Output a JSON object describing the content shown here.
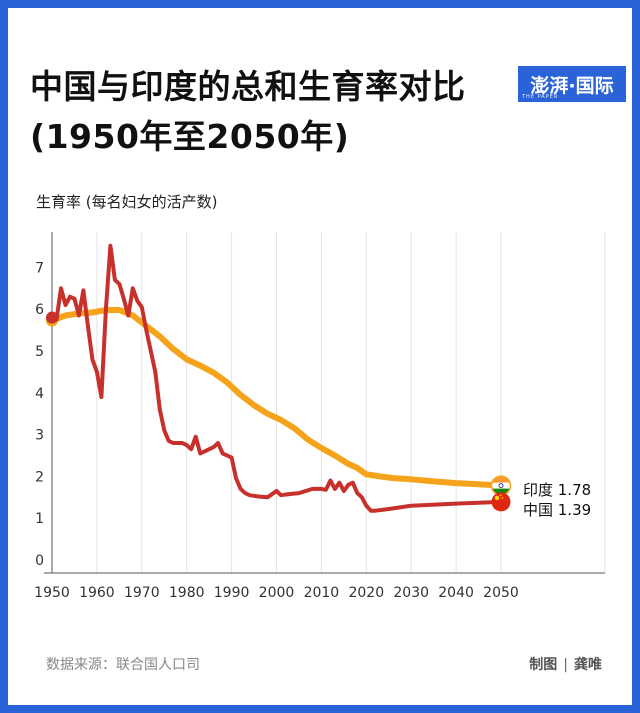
{
  "header": {
    "title": "中国与印度的总和生育率对比(1950年至2050年)",
    "badge": "澎湃·国际",
    "badge_sub": "THE PAPER"
  },
  "footer": {
    "source": "数据来源：联合国人口司",
    "credit_label": "制图",
    "credit_name": "龚唯"
  },
  "colors": {
    "frame": "#2a63d8",
    "india": "#f5a31a",
    "china": "#c8302c"
  },
  "chart_data": {
    "type": "line",
    "ylabel": "生育率 (每名妇女的活产数)",
    "xlabel": "",
    "xlim": [
      1950,
      2050
    ],
    "ylim": [
      0,
      7.7
    ],
    "x_ticks": [
      "1950",
      "1960",
      "1970",
      "1980",
      "1990",
      "2000",
      "2010",
      "2020",
      "2030",
      "2040",
      "2050"
    ],
    "y_ticks": [
      "0",
      "1",
      "2",
      "3",
      "4",
      "5",
      "6",
      "7"
    ],
    "grid": "vertical",
    "series": [
      {
        "name": "印度",
        "end_label": "印度  1.78",
        "icon": "india-flag-icon",
        "color": "#f5a31a",
        "points": [
          [
            1950,
            5.73
          ],
          [
            1953,
            5.85
          ],
          [
            1956,
            5.9
          ],
          [
            1959,
            5.92
          ],
          [
            1962,
            5.98
          ],
          [
            1965,
            5.98
          ],
          [
            1968,
            5.85
          ],
          [
            1971,
            5.6
          ],
          [
            1974,
            5.35
          ],
          [
            1977,
            5.05
          ],
          [
            1980,
            4.8
          ],
          [
            1983,
            4.65
          ],
          [
            1986,
            4.48
          ],
          [
            1989,
            4.25
          ],
          [
            1992,
            3.95
          ],
          [
            1995,
            3.7
          ],
          [
            1998,
            3.5
          ],
          [
            2001,
            3.35
          ],
          [
            2004,
            3.15
          ],
          [
            2007,
            2.88
          ],
          [
            2010,
            2.68
          ],
          [
            2013,
            2.5
          ],
          [
            2016,
            2.3
          ],
          [
            2018,
            2.2
          ],
          [
            2020,
            2.05
          ],
          [
            2023,
            2.0
          ],
          [
            2026,
            1.96
          ],
          [
            2030,
            1.93
          ],
          [
            2035,
            1.88
          ],
          [
            2040,
            1.84
          ],
          [
            2045,
            1.81
          ],
          [
            2050,
            1.78
          ]
        ]
      },
      {
        "name": "中国",
        "end_label": "中国  1.39",
        "icon": "china-flag-icon",
        "color": "#c8302c",
        "points": [
          [
            1950,
            5.8
          ],
          [
            1951,
            5.75
          ],
          [
            1952,
            6.5
          ],
          [
            1953,
            6.1
          ],
          [
            1954,
            6.3
          ],
          [
            1955,
            6.25
          ],
          [
            1956,
            5.85
          ],
          [
            1957,
            6.45
          ],
          [
            1958,
            5.6
          ],
          [
            1959,
            4.8
          ],
          [
            1960,
            4.5
          ],
          [
            1961,
            3.9
          ],
          [
            1962,
            6.0
          ],
          [
            1963,
            7.52
          ],
          [
            1964,
            6.7
          ],
          [
            1965,
            6.6
          ],
          [
            1966,
            6.25
          ],
          [
            1967,
            5.85
          ],
          [
            1968,
            6.5
          ],
          [
            1969,
            6.2
          ],
          [
            1970,
            6.05
          ],
          [
            1971,
            5.5
          ],
          [
            1972,
            5.0
          ],
          [
            1973,
            4.5
          ],
          [
            1974,
            3.6
          ],
          [
            1975,
            3.1
          ],
          [
            1976,
            2.85
          ],
          [
            1977,
            2.8
          ],
          [
            1978,
            2.8
          ],
          [
            1979,
            2.8
          ],
          [
            1980,
            2.75
          ],
          [
            1981,
            2.65
          ],
          [
            1982,
            2.95
          ],
          [
            1983,
            2.55
          ],
          [
            1984,
            2.6
          ],
          [
            1985,
            2.65
          ],
          [
            1986,
            2.7
          ],
          [
            1987,
            2.8
          ],
          [
            1988,
            2.55
          ],
          [
            1989,
            2.5
          ],
          [
            1990,
            2.45
          ],
          [
            1991,
            1.95
          ],
          [
            1992,
            1.7
          ],
          [
            1993,
            1.6
          ],
          [
            1994,
            1.55
          ],
          [
            1996,
            1.52
          ],
          [
            1998,
            1.5
          ],
          [
            2000,
            1.65
          ],
          [
            2001,
            1.55
          ],
          [
            2003,
            1.58
          ],
          [
            2005,
            1.6
          ],
          [
            2008,
            1.7
          ],
          [
            2010,
            1.7
          ],
          [
            2011,
            1.68
          ],
          [
            2012,
            1.9
          ],
          [
            2013,
            1.7
          ],
          [
            2014,
            1.85
          ],
          [
            2015,
            1.65
          ],
          [
            2016,
            1.8
          ],
          [
            2017,
            1.85
          ],
          [
            2018,
            1.6
          ],
          [
            2019,
            1.5
          ],
          [
            2020,
            1.3
          ],
          [
            2021,
            1.18
          ],
          [
            2022,
            1.18
          ],
          [
            2025,
            1.22
          ],
          [
            2030,
            1.3
          ],
          [
            2040,
            1.35
          ],
          [
            2050,
            1.39
          ]
        ]
      }
    ]
  }
}
